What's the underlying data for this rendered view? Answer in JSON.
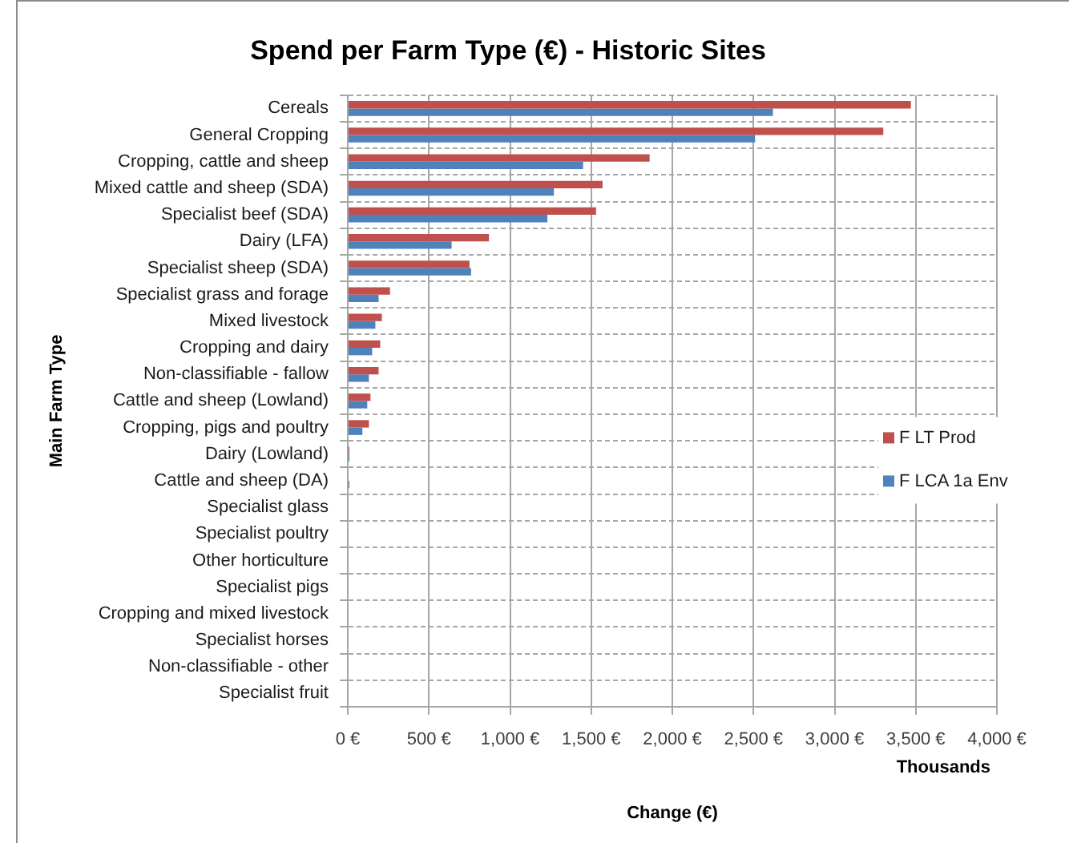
{
  "chart_data": {
    "type": "bar",
    "orientation": "horizontal",
    "title": "Spend per Farm Type (€) - Historic Sites",
    "xlabel": "Change (€)",
    "ylabel": "Main Farm Type",
    "annotations": [
      "Thousands"
    ],
    "categories": [
      "Cereals",
      "General Cropping",
      "Cropping, cattle and sheep",
      "Mixed cattle and sheep (SDA)",
      "Specialist beef (SDA)",
      "Dairy (LFA)",
      "Specialist sheep (SDA)",
      "Specialist grass and forage",
      "Mixed livestock",
      "Cropping and dairy",
      "Non-classifiable - fallow",
      "Cattle and sheep (Lowland)",
      "Cropping, pigs and poultry",
      "Dairy (Lowland)",
      "Cattle and sheep (DA)",
      "Specialist glass",
      "Specialist poultry",
      "Other horticulture",
      "Specialist pigs",
      "Cropping and mixed livestock",
      "Specialist horses",
      "Non-classifiable - other",
      "Specialist fruit"
    ],
    "series": [
      {
        "name": "F LT Prod",
        "color": "#c0504d",
        "values": [
          3470,
          3300,
          1860,
          1570,
          1530,
          870,
          750,
          260,
          210,
          200,
          190,
          140,
          130,
          10,
          0,
          0,
          0,
          0,
          0,
          0,
          0,
          0,
          0
        ]
      },
      {
        "name": "F LCA 1a Env",
        "color": "#4f81bd",
        "values": [
          2620,
          2510,
          1450,
          1270,
          1230,
          640,
          760,
          190,
          170,
          150,
          130,
          120,
          90,
          10,
          10,
          0,
          0,
          0,
          0,
          0,
          0,
          0,
          0
        ]
      }
    ],
    "xlim": [
      0,
      4000
    ],
    "xticks": [
      {
        "value": 0,
        "label": "0 €"
      },
      {
        "value": 500,
        "label": "500 €"
      },
      {
        "value": 1000,
        "label": "1,000 €"
      },
      {
        "value": 1500,
        "label": "1,500 €"
      },
      {
        "value": 2000,
        "label": "2,000 €"
      },
      {
        "value": 2500,
        "label": "2,500 €"
      },
      {
        "value": 3000,
        "label": "3,000 €"
      },
      {
        "value": 3500,
        "label": "3,500 €"
      },
      {
        "value": 4000,
        "label": "4,000 €"
      }
    ],
    "grid": true,
    "legend": "right"
  }
}
